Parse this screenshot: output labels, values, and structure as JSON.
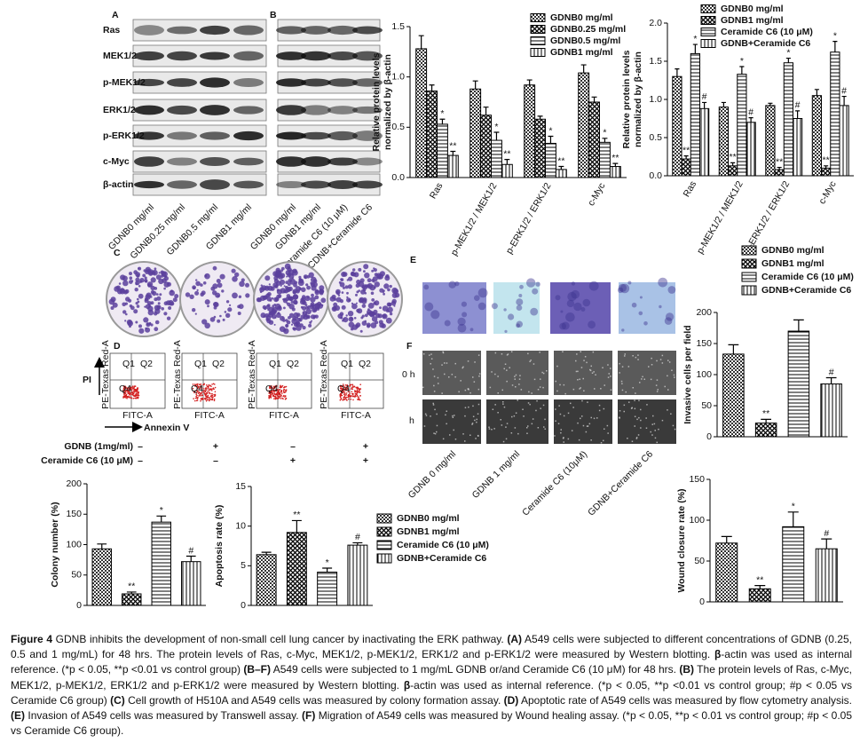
{
  "panel_labels": [
    "A",
    "B",
    "C",
    "D",
    "E",
    "F"
  ],
  "western": {
    "rows": [
      "Ras",
      "MEK1/2",
      "p-MEK1/2",
      "ERK1/2",
      "p-ERK1/2",
      "c-Myc",
      "β-actin"
    ],
    "lanes_a": [
      "GDNB0 mg/ml",
      "GDNB0.25 mg/ml",
      "GDNB0.5 mg/ml",
      "GDNB1 mg/ml"
    ],
    "lanes_b": [
      "GDNB0 mg/ml",
      "GDNB1 mg/ml",
      "Ceramide C6 (10 μM)",
      "CDNB+Ceramide C6"
    ]
  },
  "flow": {
    "y_axis": "PI",
    "x_axis": "Annexin V",
    "quadrants": [
      "Q1",
      "Q2",
      "Q4"
    ],
    "plot_x_label": "FITC-A",
    "plot_y_label": "PE-Texas Red-A"
  },
  "treatments": {
    "rows": [
      {
        "label": "GDNB (1mg/ml)",
        "signs": [
          "–",
          "+",
          "–",
          "+"
        ]
      },
      {
        "label": "Ceramide C6 (10 μM)",
        "signs": [
          "–",
          "–",
          "+",
          "+"
        ]
      }
    ]
  },
  "images": {
    "row_labels": [
      "0 h",
      "h"
    ],
    "lanes": [
      "GDNB 0 mg/ml",
      "GDNB 1 mg/ml",
      "Ceramide C6 (10μM)",
      "GDNB+Ceramide C6"
    ]
  },
  "chart_data": [
    {
      "type": "bar",
      "ylabel": [
        "Relative protein levels",
        "normalized by β-actin"
      ],
      "categories": [
        "Ras",
        "p-MEK1/2 / MEK1/2",
        "p-ERK1/2 / ERK1/2",
        "c-Myc"
      ],
      "ylim": [
        0,
        1.5
      ],
      "yticks": [
        {
          "value": 0,
          "label": "0.0"
        },
        0.5,
        {
          "value": 1,
          "label": "1.0"
        },
        1.5
      ],
      "series": [
        {
          "name": "GDNB0 mg/ml",
          "values": [
            1.28,
            0.88,
            0.92,
            1.04
          ],
          "errors": [
            0.13,
            0.08,
            0.05,
            0.08
          ],
          "markers": [
            null,
            null,
            null,
            null
          ]
        },
        {
          "name": "GDNB0.25 mg/ml",
          "values": [
            0.86,
            0.62,
            0.58,
            0.75
          ],
          "errors": [
            0.06,
            0.08,
            0.03,
            0.05
          ],
          "markers": [
            null,
            null,
            null,
            null
          ]
        },
        {
          "name": "GDNB0.5 mg/ml",
          "values": [
            0.53,
            0.37,
            0.34,
            0.35
          ],
          "errors": [
            0.05,
            0.08,
            0.07,
            0.04
          ],
          "markers": [
            "*",
            "*",
            "*",
            "*"
          ]
        },
        {
          "name": "GDNB1 mg/ml",
          "values": [
            0.22,
            0.13,
            0.08,
            0.11
          ],
          "errors": [
            0.04,
            0.05,
            0.03,
            0.03
          ],
          "markers": [
            "**",
            "**",
            "**",
            "**"
          ]
        }
      ]
    },
    {
      "type": "bar",
      "ylabel": [
        "Relative protein levels",
        "normalized by β-actin"
      ],
      "categories": [
        "Ras",
        "p-MEK1/2 / MEK1/2",
        "p-ERK1/2 / ERK1/2",
        "c-Myc"
      ],
      "ylim": [
        0,
        2
      ],
      "yticks": [
        {
          "value": 0,
          "label": "0.0"
        },
        0.5,
        {
          "value": 1,
          "label": "1.0"
        },
        1.5,
        {
          "value": 2,
          "label": "2.0"
        }
      ],
      "series": [
        {
          "name": "GDNB0 mg/ml",
          "values": [
            1.3,
            0.9,
            0.92,
            1.05
          ],
          "errors": [
            0.1,
            0.06,
            0.03,
            0.08
          ],
          "markers": [
            null,
            null,
            null,
            null
          ]
        },
        {
          "name": "GDNB1 mg/ml",
          "values": [
            0.22,
            0.13,
            0.08,
            0.1
          ],
          "errors": [
            0.04,
            0.04,
            0.03,
            0.03
          ],
          "markers": [
            "**",
            "**",
            "**",
            "**"
          ]
        },
        {
          "name": "Ceramide C6 (10 μM)",
          "values": [
            1.6,
            1.33,
            1.48,
            1.62
          ],
          "errors": [
            0.12,
            0.1,
            0.06,
            0.14
          ],
          "markers": [
            "*",
            "*",
            "*",
            "*"
          ]
        },
        {
          "name": "GDNB+Ceramide C6",
          "values": [
            0.88,
            0.7,
            0.75,
            0.92
          ],
          "errors": [
            0.08,
            0.06,
            0.1,
            0.12
          ],
          "markers": [
            "#",
            "#",
            "#",
            "#"
          ]
        }
      ]
    },
    {
      "type": "bar",
      "ylabel": "Colony number (%)",
      "ylim": [
        0,
        200
      ],
      "yticks": [
        0,
        50,
        100,
        150,
        200
      ],
      "values": [
        93,
        19,
        137,
        72
      ],
      "errors": [
        8,
        3,
        10,
        9
      ],
      "markers": [
        null,
        "**",
        "*",
        "#"
      ]
    },
    {
      "type": "bar",
      "ylabel": "Apoptosis rate (%)",
      "ylim": [
        0,
        15
      ],
      "yticks": [
        0,
        5,
        10,
        15
      ],
      "values": [
        6.4,
        9.2,
        4.2,
        7.6
      ],
      "errors": [
        0.3,
        1.5,
        0.5,
        0.3
      ],
      "markers": [
        null,
        "**",
        "*",
        "#"
      ],
      "legend": [
        "GDNB0 mg/ml",
        "GDNB1 mg/ml",
        "Ceramide C6 (10 μM)",
        "GDNB+Ceramide C6"
      ]
    },
    {
      "type": "bar",
      "ylabel": "Invasive cells per field",
      "ylim": [
        0,
        200
      ],
      "yticks": [
        0,
        50,
        100,
        150,
        200
      ],
      "values": [
        133,
        22,
        170,
        85
      ],
      "errors": [
        15,
        6,
        18,
        10
      ],
      "markers": [
        null,
        "**",
        null,
        "#"
      ],
      "legend": [
        "GDNB0 mg/ml",
        "GDNB1 mg/ml",
        "Ceramide C6 (10 μM)",
        "GDNB+Ceramide C6"
      ]
    },
    {
      "type": "bar",
      "ylabel": "Wound closure rate (%)",
      "ylim": [
        0,
        150
      ],
      "yticks": [
        0,
        50,
        100,
        150
      ],
      "values": [
        72,
        16,
        92,
        65
      ],
      "errors": [
        8,
        4,
        18,
        12
      ],
      "markers": [
        null,
        "**",
        "*",
        "#"
      ]
    }
  ],
  "caption": [
    "Figure 4",
    " GDNB inhibits the development of non-small cell lung cancer by inactivating the ERK pathway. ",
    "(A)",
    " A549 cells were subjected to different concentrations of GDNB (0.25, 0.5 and 1 mg/mL) for 48 hrs. The protein levels of Ras, c-Myc, MEK1/2, p-MEK1/2, ERK1/2 and p-ERK1/2 were measured by Western blotting. ",
    "β",
    "-actin was used as internal reference. (*p < 0.05, **p <0.01 vs control group) ",
    "(B–F)",
    " A549 cells were subjected to 1 mg/mL GDNB or/and Ceramide C6 (10 μM) for 48 hrs. ",
    "(B)",
    " The protein levels of Ras, c-Myc, MEK1/2, p-MEK1/2, ERK1/2 and p-ERK1/2 were measured by Western blotting. ",
    "β",
    "-actin was used as internal reference. (*p < 0.05, **p <0.01 vs control group; #p < 0.05 vs Ceramide C6 group) ",
    "(C)",
    " Cell growth of H510A and A549 cells was measured by colony formation assay. ",
    "(D)",
    " Apoptotic rate of A549 cells was measured by flow cytometry analysis. ",
    "(E)",
    " Invasion of A549 cells was measured by Transwell assay. ",
    "(F)",
    " Migration of A549 cells was measured by Wound healing assay. (*p < 0.05, **p < 0.01 vs control group; #p < 0.05 vs Ceramide C6 group)."
  ]
}
